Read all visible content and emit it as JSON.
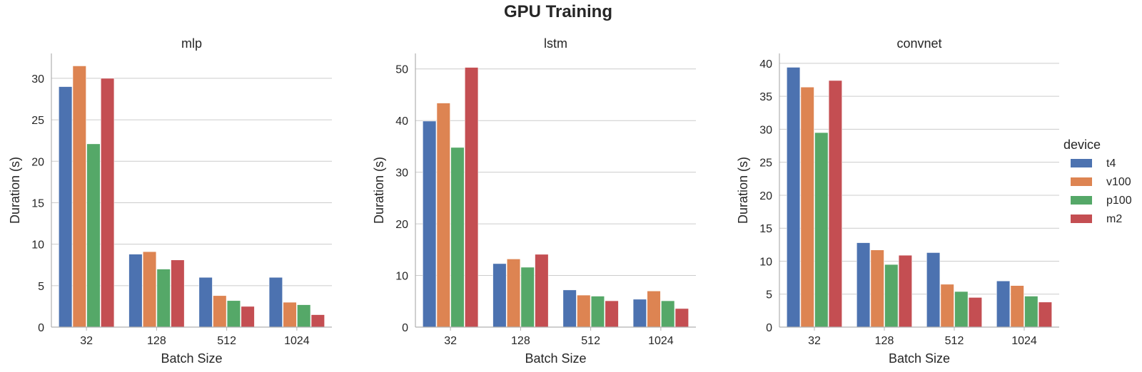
{
  "chart_data": {
    "type": "bar",
    "title": "GPU Training",
    "legend": {
      "title": "device",
      "position": "right",
      "entries": [
        {
          "name": "t4",
          "color": "#4c72b0"
        },
        {
          "name": "v100",
          "color": "#dd8452"
        },
        {
          "name": "p100",
          "color": "#55a868"
        },
        {
          "name": "m2",
          "color": "#c44e52"
        }
      ]
    },
    "grid": "y",
    "panels": [
      {
        "title": "mlp",
        "xlabel": "Batch Size",
        "ylabel": "Duration (s)",
        "categories": [
          "32",
          "128",
          "512",
          "1024"
        ],
        "ylim": [
          0,
          33
        ],
        "yticks": [
          "0",
          "5",
          "10",
          "15",
          "20",
          "25",
          "30"
        ],
        "series": [
          {
            "name": "t4",
            "values": [
              29.0,
              8.8,
              6.0,
              6.0
            ]
          },
          {
            "name": "v100",
            "values": [
              31.5,
              9.1,
              3.8,
              3.0
            ]
          },
          {
            "name": "p100",
            "values": [
              22.1,
              7.0,
              3.2,
              2.7
            ]
          },
          {
            "name": "m2",
            "values": [
              30.0,
              8.1,
              2.5,
              1.5
            ]
          }
        ]
      },
      {
        "title": "lstm",
        "xlabel": "Batch Size",
        "ylabel": "Duration (s)",
        "categories": [
          "32",
          "128",
          "512",
          "1024"
        ],
        "ylim": [
          0,
          53
        ],
        "yticks": [
          "0",
          "10",
          "20",
          "30",
          "40",
          "50"
        ],
        "series": [
          {
            "name": "t4",
            "values": [
              39.9,
              12.3,
              7.2,
              5.4
            ]
          },
          {
            "name": "v100",
            "values": [
              43.4,
              13.2,
              6.2,
              7.0
            ]
          },
          {
            "name": "p100",
            "values": [
              34.8,
              11.6,
              6.0,
              5.1
            ]
          },
          {
            "name": "m2",
            "values": [
              50.3,
              14.1,
              5.1,
              3.6
            ]
          }
        ]
      },
      {
        "title": "convnet",
        "xlabel": "Batch Size",
        "ylabel": "Duration (s)",
        "categories": [
          "32",
          "128",
          "512",
          "1024"
        ],
        "ylim": [
          0,
          41.5
        ],
        "yticks": [
          "0",
          "5",
          "10",
          "15",
          "20",
          "25",
          "30",
          "35",
          "40"
        ],
        "series": [
          {
            "name": "t4",
            "values": [
              39.4,
              12.8,
              11.3,
              7.0
            ]
          },
          {
            "name": "v100",
            "values": [
              36.4,
              11.7,
              6.5,
              6.3
            ]
          },
          {
            "name": "p100",
            "values": [
              29.5,
              9.5,
              5.4,
              4.7
            ]
          },
          {
            "name": "m2",
            "values": [
              37.4,
              10.9,
              4.5,
              3.8
            ]
          }
        ]
      }
    ]
  }
}
